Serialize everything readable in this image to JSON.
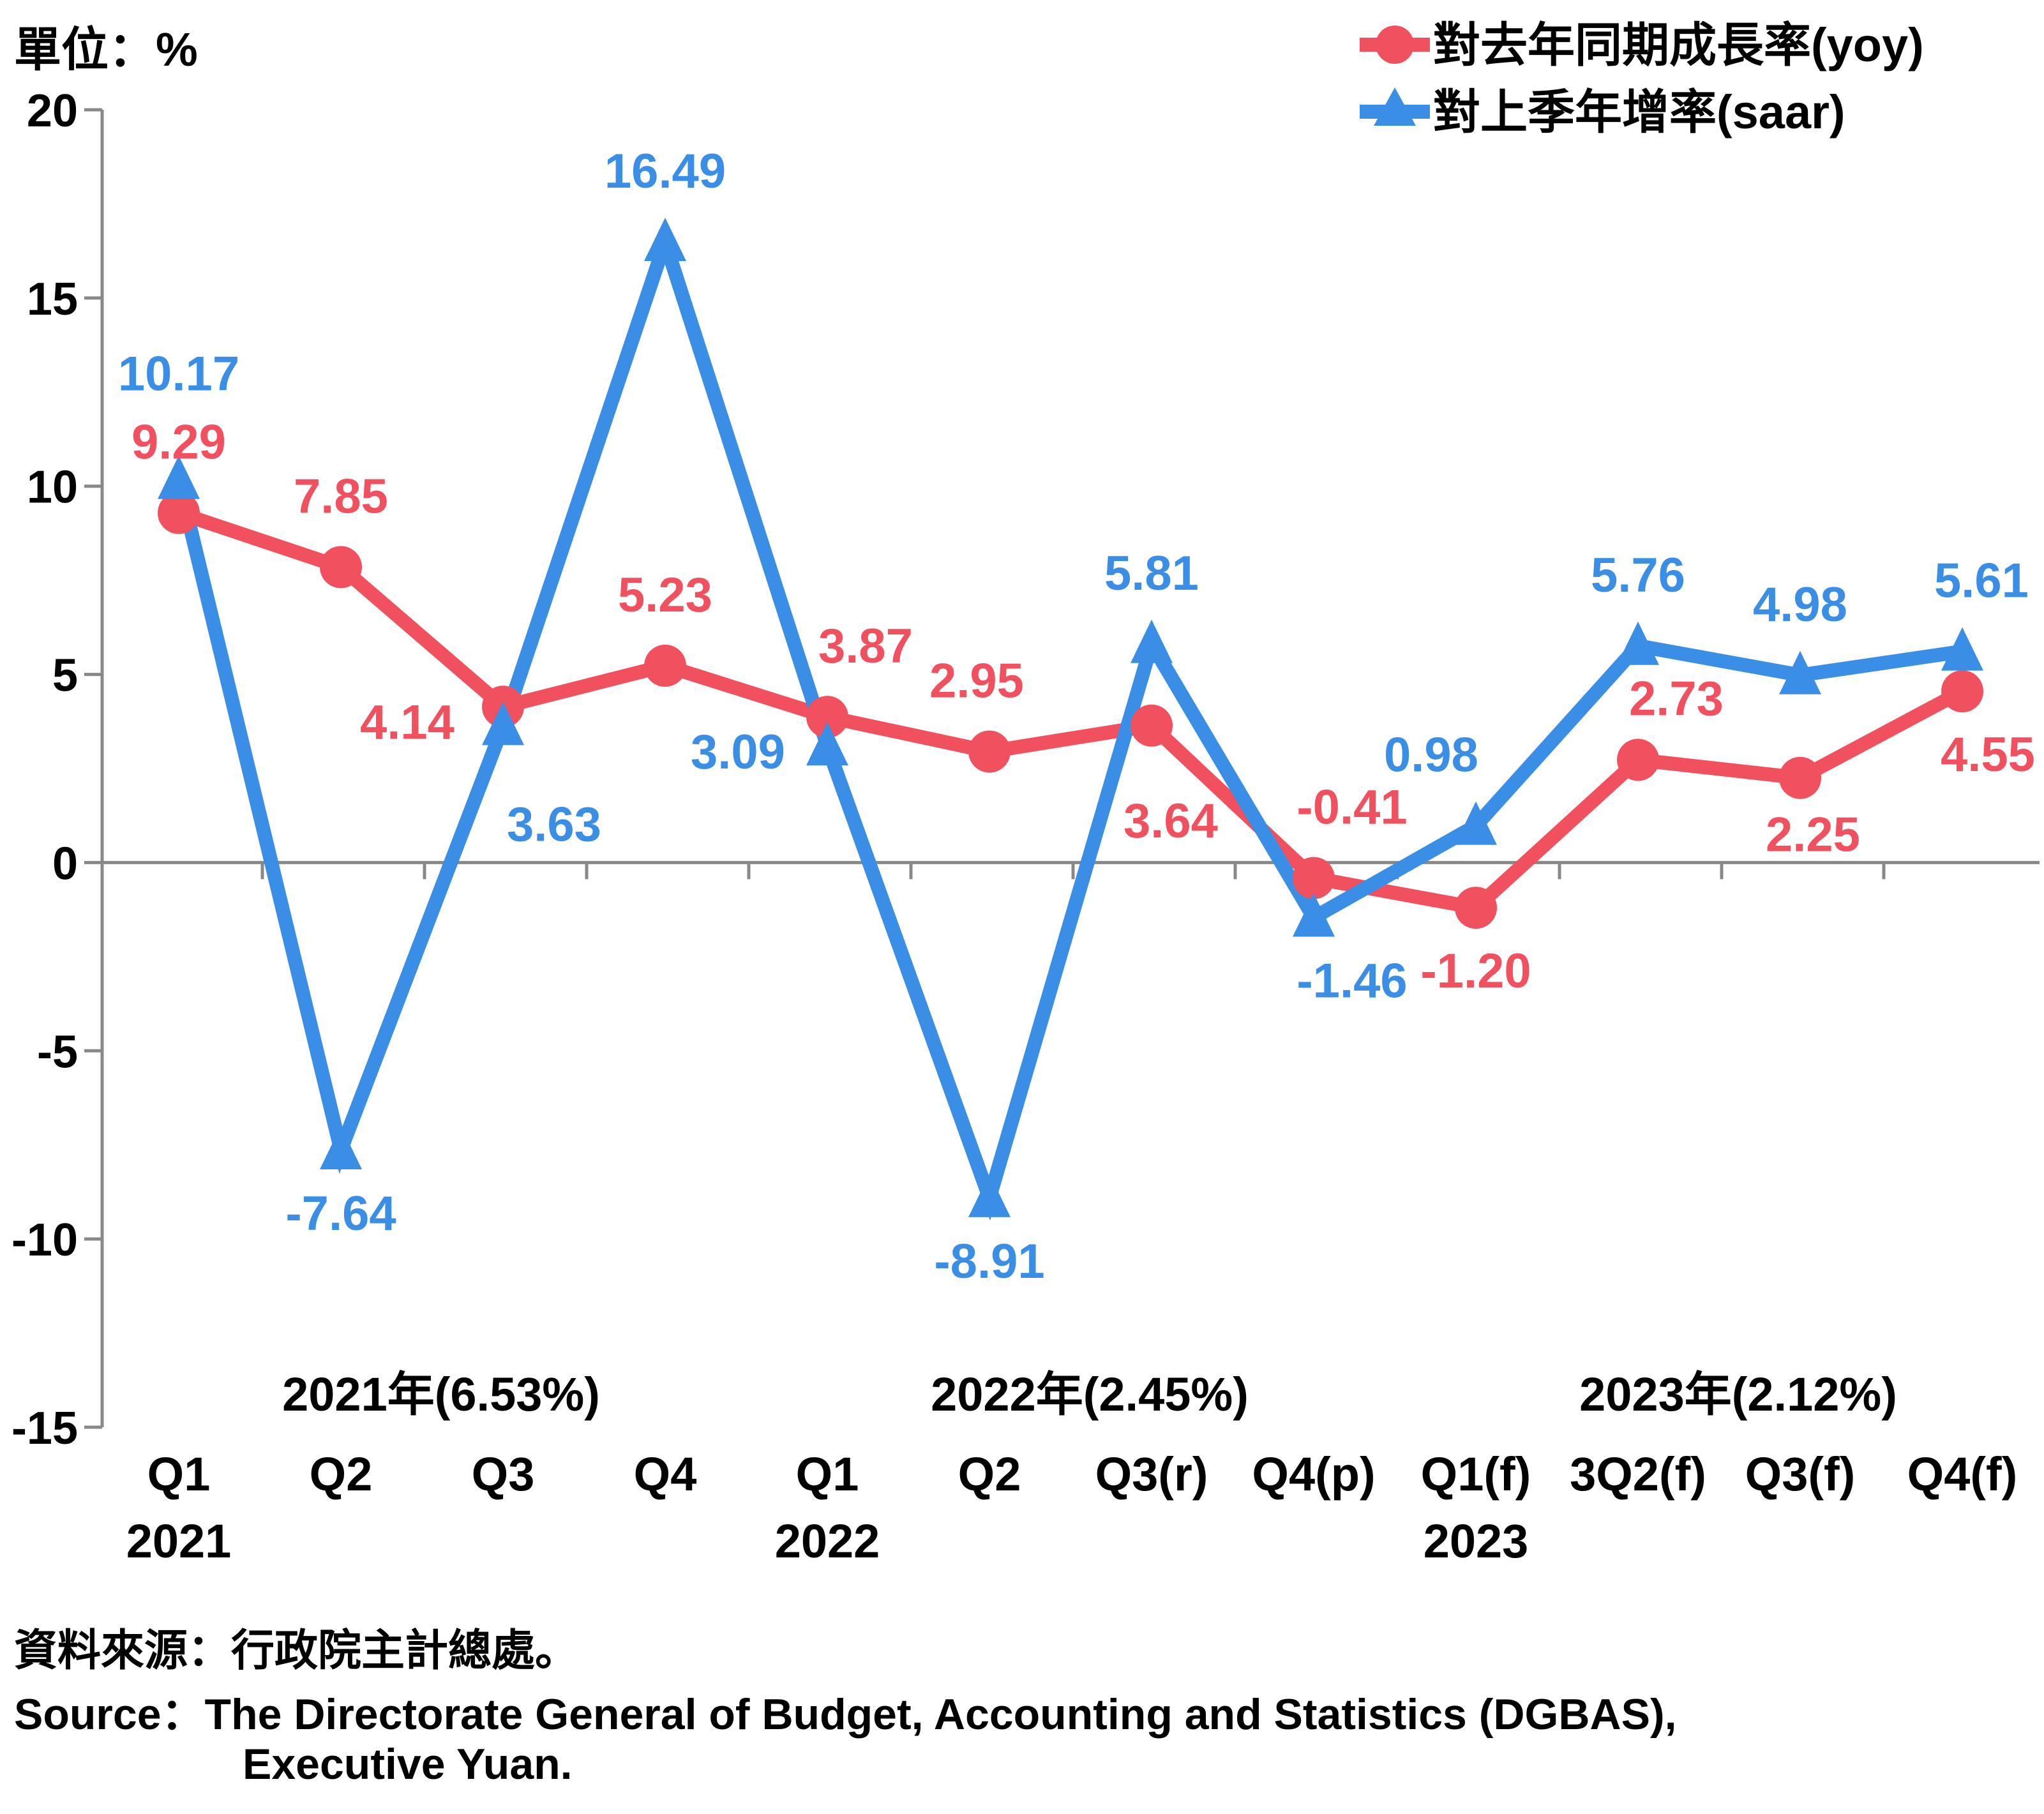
{
  "unit_label": "單位：%",
  "source_zh": "資料來源：行政院主計總處。",
  "source_en_line1": "Source：The Directorate General of Budget, Accounting and Statistics (DGBAS),",
  "source_en_line2": "Executive Yuan.",
  "chart_data": {
    "type": "line",
    "categories": [
      "Q1",
      "Q2",
      "Q3",
      "Q4",
      "Q1",
      "Q2",
      "Q3(r)",
      "Q4(p)",
      "Q1(f)",
      "3Q2(f)",
      "Q3(f)",
      "Q4(f)"
    ],
    "year_labels": [
      {
        "index": 0,
        "text": "2021"
      },
      {
        "index": 4,
        "text": "2022"
      },
      {
        "index": 8,
        "text": "2023"
      }
    ],
    "annual_labels": [
      {
        "text": "2021年(6.53%)",
        "center": 1.5
      },
      {
        "text": "2022年(2.45%)",
        "center": 5.5
      },
      {
        "text": "2023年(2.12%)",
        "center": 9.5
      }
    ],
    "series": [
      {
        "name": "對去年同期成長率(yoy)",
        "color": "#f1505f",
        "marker": "circle",
        "values": [
          9.29,
          7.85,
          4.14,
          5.23,
          3.87,
          2.95,
          3.64,
          -0.41,
          -1.2,
          2.73,
          2.25,
          4.55
        ],
        "labels": [
          "9.29",
          "7.85",
          "4.14",
          "5.23",
          "3.87",
          "2.95",
          "3.64",
          "-0.41",
          "-1.20",
          "2.73",
          "2.25",
          "4.55"
        ]
      },
      {
        "name": "對上季年增率(saar)",
        "color": "#3a8ee6",
        "marker": "triangle",
        "values": [
          10.17,
          -7.64,
          3.63,
          16.49,
          3.09,
          -8.91,
          5.81,
          -1.46,
          0.98,
          5.76,
          4.98,
          5.61
        ],
        "labels": [
          "10.17",
          "-7.64",
          "3.63",
          "16.49",
          "3.09",
          "-8.91",
          "5.81",
          "-1.46",
          "0.98",
          "5.76",
          "4.98",
          "5.61"
        ]
      }
    ],
    "ylim": [
      -15,
      20
    ],
    "yticks": [
      20,
      15,
      10,
      5,
      0,
      -5,
      -10,
      -15
    ],
    "ytick_labels": [
      "20",
      "15",
      "10",
      "5",
      "0",
      "-5",
      "-10",
      "-15"
    ],
    "grid": false,
    "legend_position": "top-right"
  }
}
